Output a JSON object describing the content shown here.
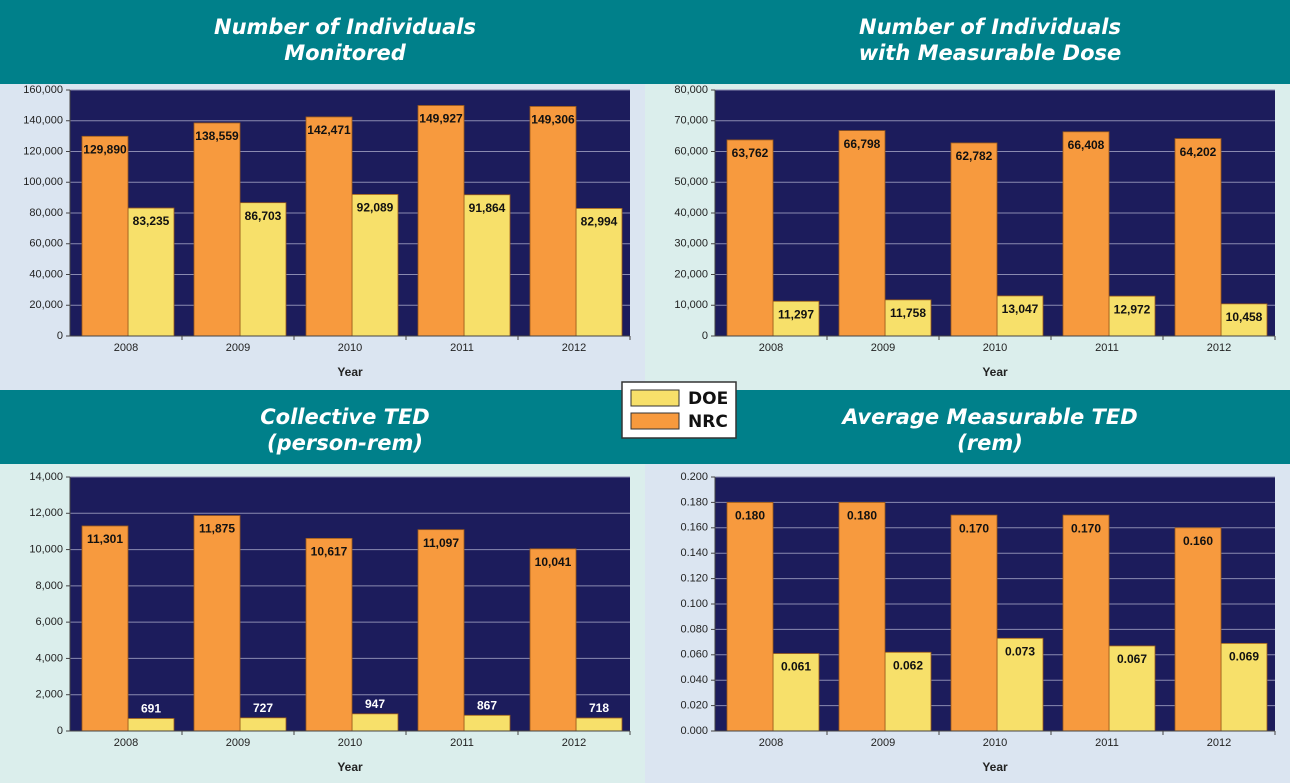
{
  "chart_data": [
    {
      "type": "bar",
      "title": [
        "Number of Individuals",
        "Monitored"
      ],
      "x_label": "Year",
      "categories": [
        "2008",
        "2009",
        "2010",
        "2011",
        "2012"
      ],
      "series": [
        {
          "name": "DOE",
          "color": "#f7e06a",
          "values": [
            83235,
            86703,
            92089,
            91864,
            82994
          ],
          "value_labels": [
            "83,235",
            "86,703",
            "92,089",
            "91,864",
            "82,994"
          ]
        },
        {
          "name": "NRC",
          "color": "#f79a3e",
          "values": [
            129890,
            138559,
            142471,
            149927,
            149306
          ],
          "value_labels": [
            "129,890",
            "138,559",
            "142,471",
            "149,927",
            "149,306"
          ]
        }
      ],
      "ylim": [
        0,
        160000
      ],
      "yticks": [
        0,
        {
          "value": 20000,
          "label": "20,000"
        },
        {
          "value": 40000,
          "label": "40,000"
        },
        {
          "value": 60000,
          "label": "60,000"
        },
        {
          "value": 80000,
          "label": "80,000"
        },
        {
          "value": 100000,
          "label": "100,000"
        },
        {
          "value": 120000,
          "label": "120,000"
        },
        {
          "value": 140000,
          "label": "140,000"
        },
        {
          "value": 160000,
          "label": "160,000"
        }
      ],
      "grid": true
    },
    {
      "type": "bar",
      "title": [
        "Number of Individuals",
        "with Measurable Dose"
      ],
      "x_label": "Year",
      "categories": [
        "2008",
        "2009",
        "2010",
        "2011",
        "2012"
      ],
      "series": [
        {
          "name": "DOE",
          "color": "#f7e06a",
          "values": [
            11297,
            11758,
            13047,
            12972,
            10458
          ],
          "value_labels": [
            "11,297",
            "11,758",
            "13,047",
            "12,972",
            "10,458"
          ]
        },
        {
          "name": "NRC",
          "color": "#f79a3e",
          "values": [
            63762,
            66798,
            62782,
            66408,
            64202
          ],
          "value_labels": [
            "63,762",
            "66,798",
            "62,782",
            "66,408",
            "64,202"
          ]
        }
      ],
      "ylim": [
        0,
        80000
      ],
      "yticks": [
        0,
        {
          "value": 10000,
          "label": "10,000"
        },
        {
          "value": 20000,
          "label": "20,000"
        },
        {
          "value": 30000,
          "label": "30,000"
        },
        {
          "value": 40000,
          "label": "40,000"
        },
        {
          "value": 50000,
          "label": "50,000"
        },
        {
          "value": 60000,
          "label": "60,000"
        },
        {
          "value": 70000,
          "label": "70,000"
        },
        {
          "value": 80000,
          "label": "80,000"
        }
      ],
      "grid": true
    },
    {
      "type": "bar",
      "title": [
        "Collective TED",
        "(person-rem)"
      ],
      "x_label": "Year",
      "categories": [
        "2008",
        "2009",
        "2010",
        "2011",
        "2012"
      ],
      "series": [
        {
          "name": "DOE",
          "color": "#f7e06a",
          "values": [
            691,
            727,
            947,
            867,
            718
          ]
        },
        {
          "name": "NRC",
          "color": "#f79a3e",
          "values": [
            11301,
            11875,
            10617,
            11097,
            10041
          ],
          "value_labels": [
            "11,301",
            "11,875",
            "10,617",
            "11,097",
            "10,041"
          ]
        }
      ],
      "ylim": [
        0,
        14000
      ],
      "yticks": [
        0,
        {
          "value": 2000,
          "label": "2,000"
        },
        {
          "value": 4000,
          "label": "4,000"
        },
        {
          "value": 6000,
          "label": "6,000"
        },
        {
          "value": 8000,
          "label": "8,000"
        },
        {
          "value": 10000,
          "label": "10,000"
        },
        {
          "value": 12000,
          "label": "12,000"
        },
        {
          "value": 14000,
          "label": "14,000"
        }
      ],
      "grid": true
    },
    {
      "type": "bar",
      "title": [
        "Average Measurable TED",
        "(rem)"
      ],
      "x_label": "Year",
      "categories": [
        "2008",
        "2009",
        "2010",
        "2011",
        "2012"
      ],
      "series": [
        {
          "name": "DOE",
          "color": "#f7e06a",
          "values": [
            0.061,
            0.062,
            0.073,
            0.067,
            0.069
          ]
        },
        {
          "name": "NRC",
          "color": "#f79a3e",
          "values": [
            0.18,
            0.18,
            0.17,
            0.17,
            0.16
          ],
          "value_labels": [
            "0.180",
            "0.180",
            "0.170",
            "0.170",
            "0.160"
          ]
        }
      ],
      "ylim": [
        0,
        0.2
      ],
      "yticks": [
        {
          "value": 0,
          "label": "0.000"
        },
        {
          "value": 0.02,
          "label": "0.020"
        },
        {
          "value": 0.04,
          "label": "0.040"
        },
        {
          "value": 0.06,
          "label": "0.060"
        },
        {
          "value": 0.08,
          "label": "0.080"
        },
        {
          "value": 0.1,
          "label": "0.100"
        },
        {
          "value": 0.12,
          "label": "0.120"
        },
        {
          "value": 0.14,
          "label": "0.140"
        },
        {
          "value": 0.16,
          "label": "0.160"
        },
        {
          "value": 0.18,
          "label": "0.180"
        },
        {
          "value": 0.2,
          "label": "0.200"
        }
      ],
      "grid": true
    }
  ]
}
